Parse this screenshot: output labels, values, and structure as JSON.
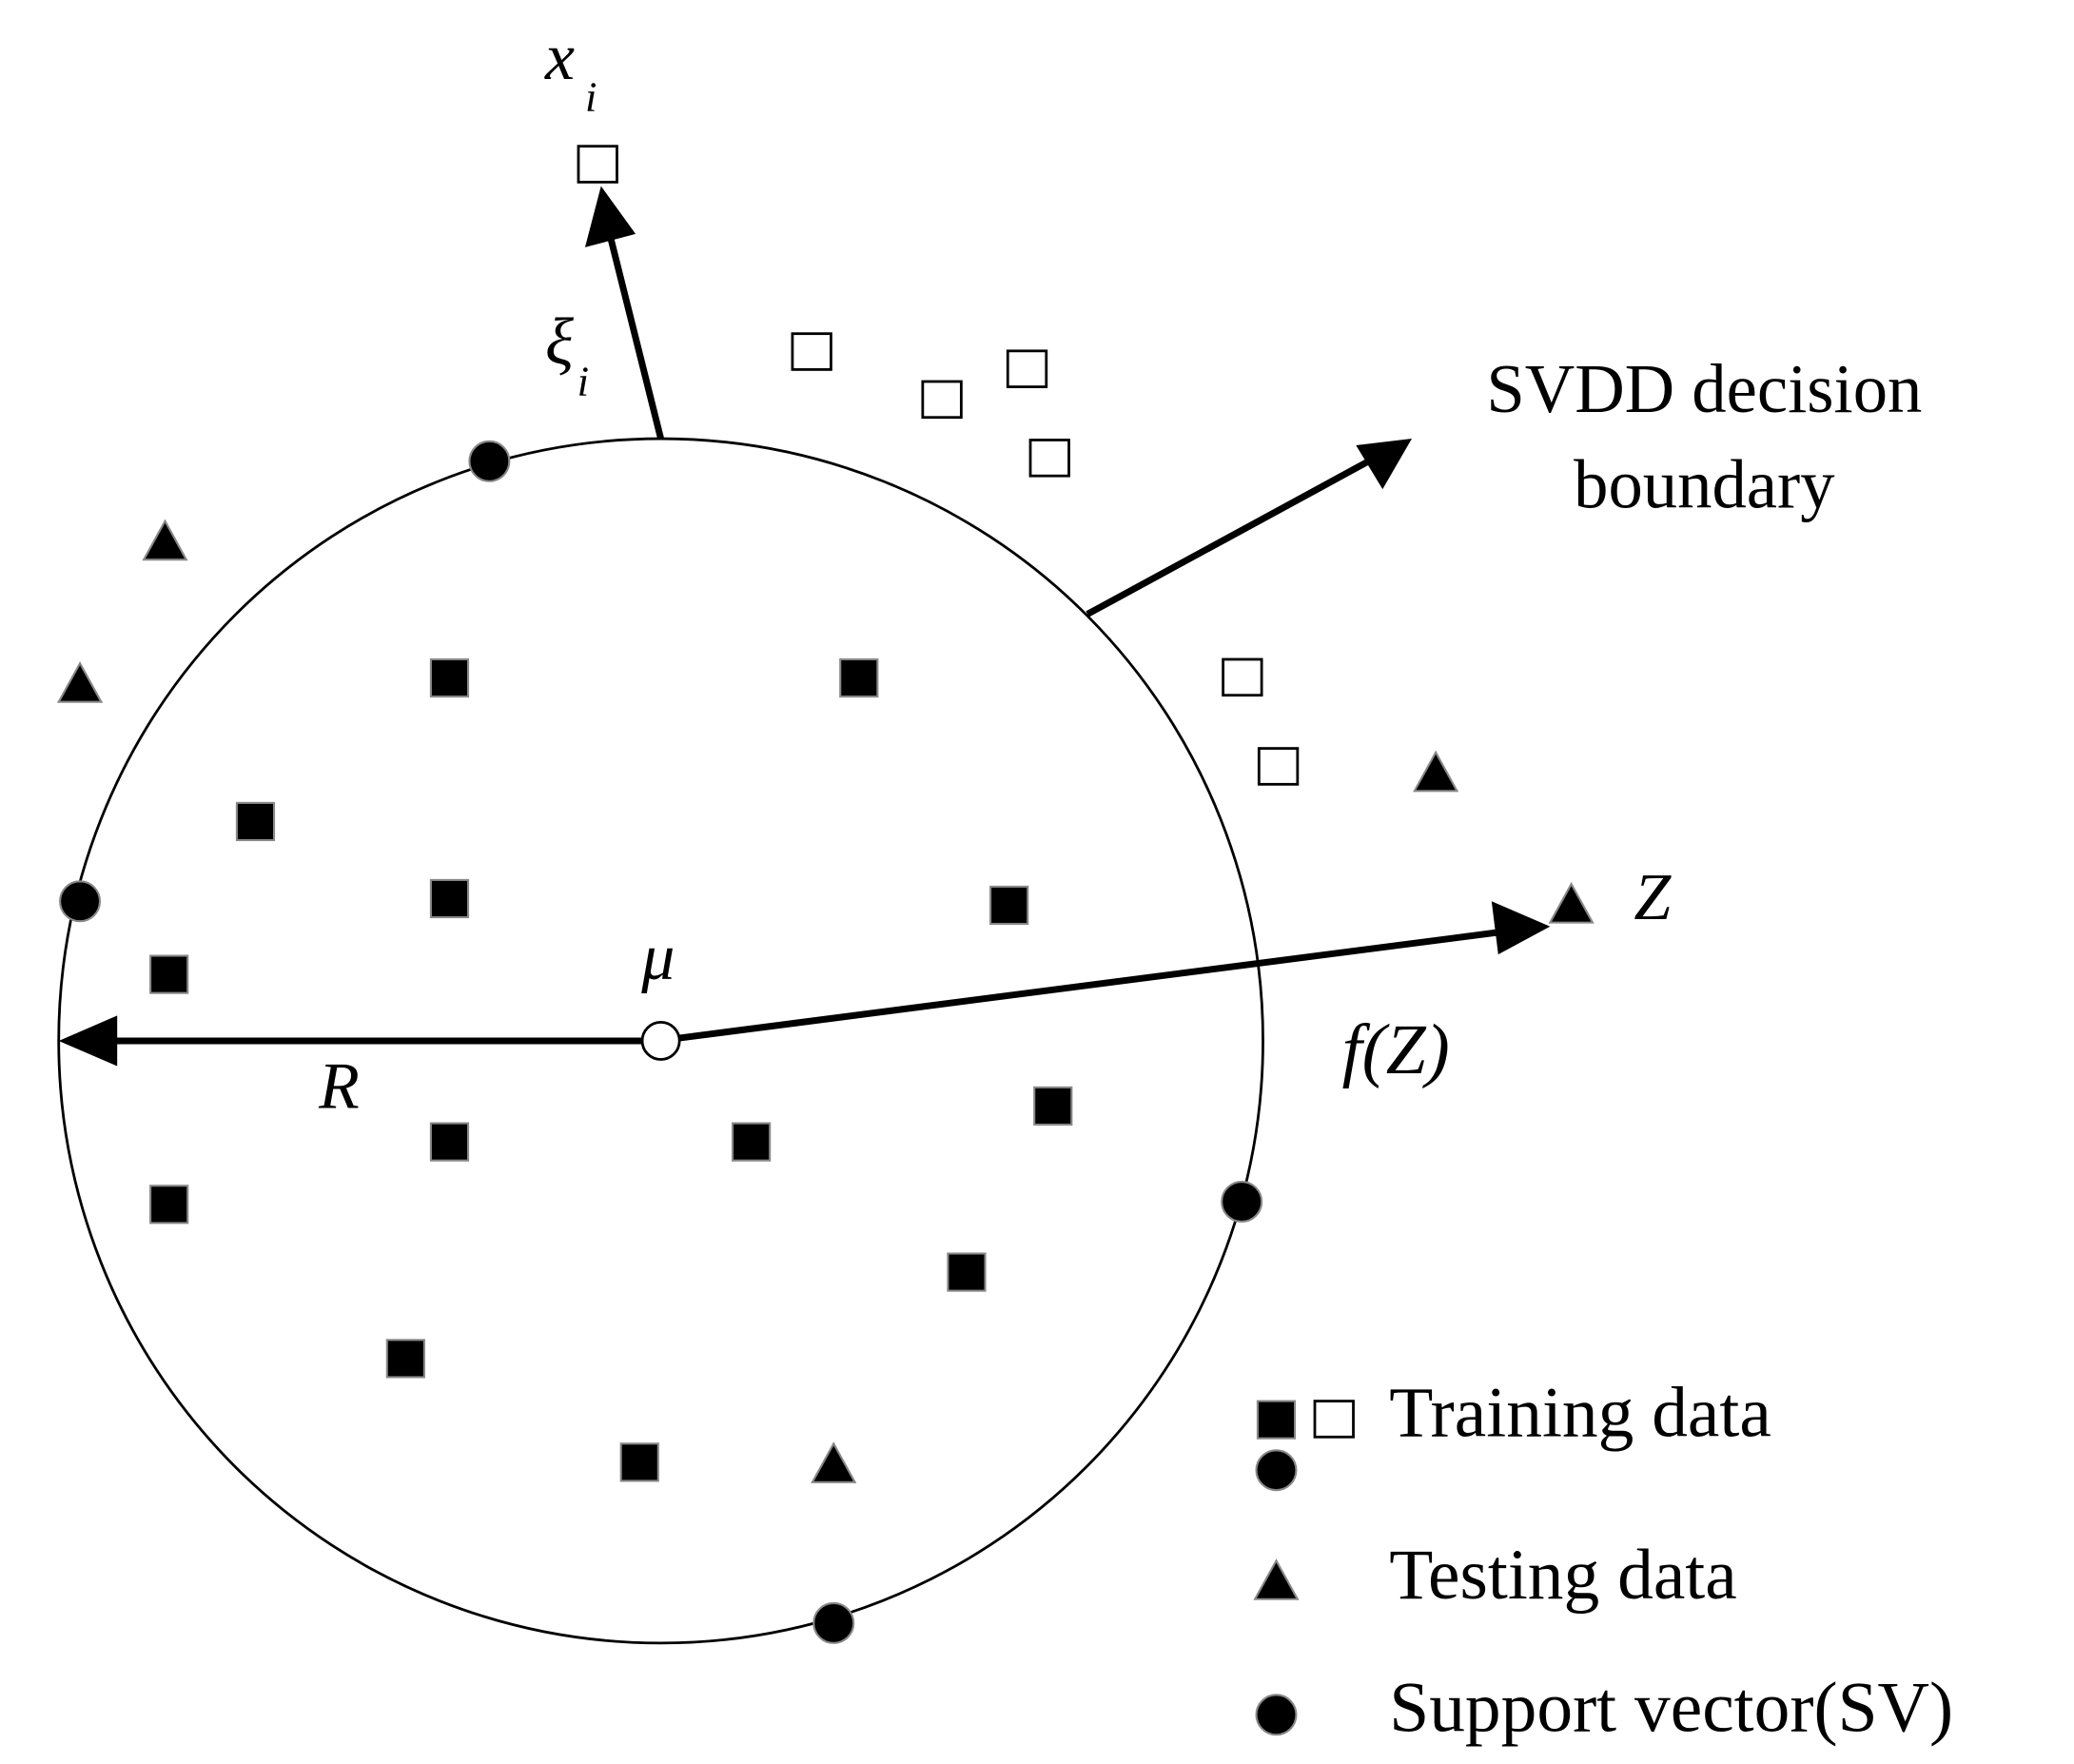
{
  "labels": {
    "x": "x",
    "x_sub": "i",
    "xi": "ξ",
    "xi_sub": "i",
    "boundary_line1": "SVDD decision",
    "boundary_line2": "boundary",
    "mu": "μ",
    "R": "R",
    "Z": "Z",
    "fZ": "f(Z)"
  },
  "legend": [
    {
      "label": "Training data"
    },
    {
      "label": "Testing data"
    },
    {
      "label": "Support vector(SV)"
    }
  ]
}
